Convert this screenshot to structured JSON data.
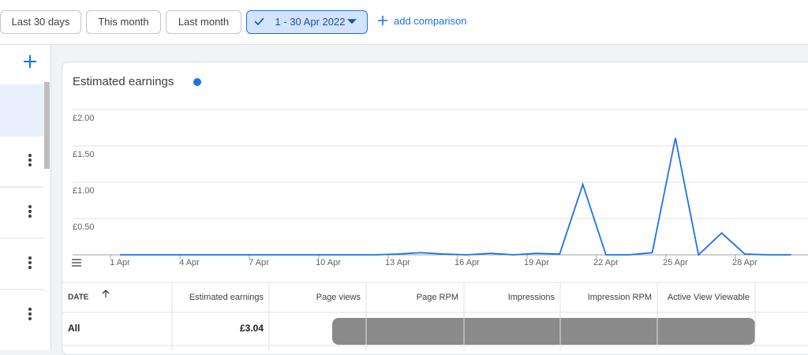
{
  "toolbar": {
    "buttons": [
      "Last 30 days",
      "This month",
      "Last month"
    ],
    "date_range": "1 - 30 Apr 2022",
    "add_comparison": "add comparison"
  },
  "chart_data": {
    "type": "line",
    "title": "Estimated earnings",
    "color": "#1a73e8",
    "categories": [
      "1 Apr",
      null,
      null,
      "4 Apr",
      null,
      null,
      "7 Apr",
      null,
      null,
      "10 Apr",
      null,
      null,
      "13 Apr",
      null,
      null,
      "16 Apr",
      null,
      null,
      "19 Apr",
      null,
      null,
      "22 Apr",
      null,
      null,
      "25 Apr",
      null,
      null,
      "28 Apr",
      null,
      null
    ],
    "values": [
      0,
      0,
      0,
      0,
      0,
      0,
      0,
      0,
      0,
      0,
      0,
      0,
      0.01,
      0.03,
      0.01,
      0,
      0.02,
      0,
      0.02,
      0.01,
      0.97,
      0,
      0,
      0.03,
      1.61,
      0,
      0.3,
      0.01,
      0,
      0
    ],
    "ylim": [
      0,
      2
    ],
    "yticks": [
      {
        "value": 0.5,
        "label": "£0.50"
      },
      {
        "value": 1,
        "label": "£1.00"
      },
      {
        "value": 1.5,
        "label": "£1.50"
      },
      {
        "value": 2,
        "label": "£2.00"
      }
    ],
    "grid": true
  },
  "table": {
    "columns": [
      "DATE",
      "Estimated earnings",
      "Page views",
      "Page RPM",
      "Impressions",
      "Impression RPM",
      "Active View Viewable"
    ],
    "rows": [
      [
        "All",
        "£3.04"
      ]
    ]
  }
}
